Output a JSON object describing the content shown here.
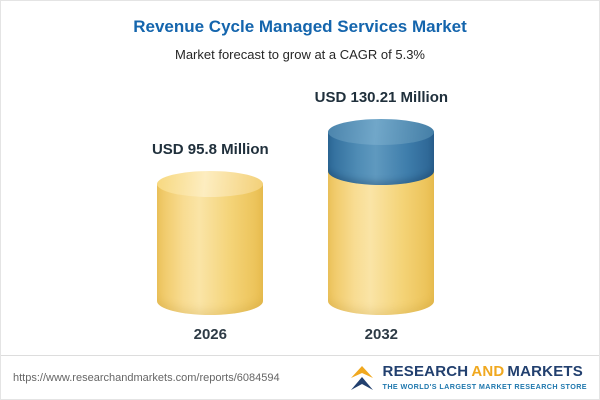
{
  "chart_data": {
    "type": "bar",
    "style": "3d-cylinder",
    "title": "Revenue Cycle Managed Services Market",
    "subtitle": "Market forecast to grow at a CAGR of 5.3%",
    "cagr": "5.3%",
    "unit": "USD Million",
    "categories": [
      "2026",
      "2032"
    ],
    "values": [
      95.8,
      130.21
    ],
    "value_labels": [
      "USD 95.8 Million",
      "USD 130.21 Million"
    ],
    "ylim": [
      0,
      130.21
    ],
    "legend": false,
    "axes_visible": false,
    "colors": {
      "base": "#f5d57a",
      "growth": "#3d7dab"
    }
  },
  "footer": {
    "url": "https://www.researchandmarkets.com/reports/6084594",
    "logo": {
      "research": "RESEARCH",
      "and": "AND",
      "markets": "MARKETS",
      "tagline": "THE WORLD'S LARGEST MARKET RESEARCH STORE"
    }
  }
}
